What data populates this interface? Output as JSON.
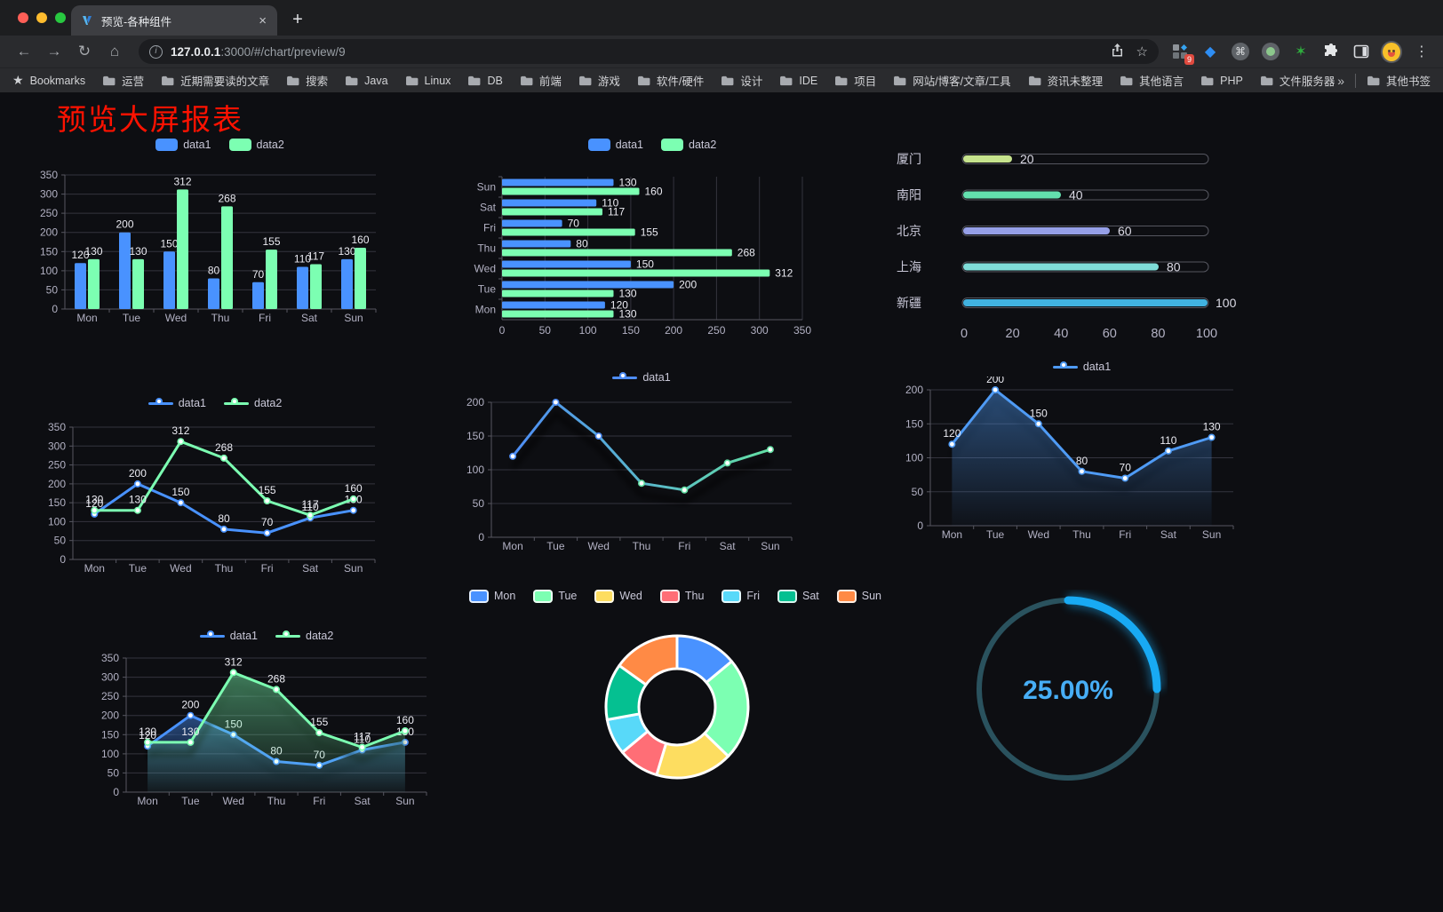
{
  "browser": {
    "tab_title": "预览-各种组件",
    "close_glyph": "×",
    "new_tab_glyph": "+",
    "url_host": "127.0.0.1",
    "url_rest": ":3000/#/chart/preview/9",
    "extension_badge": "9",
    "menu_glyph": "⋮"
  },
  "bookmarks_bar": {
    "label": "Bookmarks",
    "folders": [
      "运营",
      "近期需要读的文章",
      "搜索",
      "Java",
      "Linux",
      "DB",
      "前端",
      "游戏",
      "软件/硬件",
      "设计",
      "IDE",
      "项目",
      "网站/博客/文章/工具",
      "资讯未整理",
      "其他语言",
      "PHP",
      "文件服务器"
    ],
    "overflow_glyph": "»",
    "other_bookmarks": "其他书签"
  },
  "page": {
    "title": "预览大屏报表"
  },
  "chart_data": [
    {
      "id": "c1",
      "type": "bar",
      "legend_position": "top",
      "grid": true,
      "categories": [
        "Mon",
        "Tue",
        "Wed",
        "Thu",
        "Fri",
        "Sat",
        "Sun"
      ],
      "series": [
        {
          "name": "data1",
          "color": "#4992ff",
          "values": [
            120,
            200,
            150,
            80,
            70,
            110,
            130
          ]
        },
        {
          "name": "data2",
          "color": "#7cffb2",
          "values": [
            130,
            130,
            312,
            268,
            155,
            117,
            160
          ]
        }
      ],
      "ylim": [
        0,
        350
      ],
      "ytick": 50
    },
    {
      "id": "c2",
      "type": "hbar",
      "legend_position": "top",
      "grid": true,
      "categories_bottom_to_top": [
        "Mon",
        "Tue",
        "Wed",
        "Thu",
        "Fri",
        "Sat",
        "Sun"
      ],
      "series": [
        {
          "name": "data1",
          "color": "#4992ff",
          "values": [
            120,
            200,
            150,
            80,
            70,
            110,
            130
          ]
        },
        {
          "name": "data2",
          "color": "#7cffb2",
          "values": [
            130,
            130,
            312,
            268,
            155,
            117,
            160
          ]
        }
      ],
      "xlim": [
        0,
        350
      ],
      "xtick": 50
    },
    {
      "id": "c3",
      "type": "progress",
      "items": [
        {
          "label": "厦门",
          "value": 20,
          "color": "#c6e38d"
        },
        {
          "label": "南阳",
          "value": 40,
          "color": "#63dfae"
        },
        {
          "label": "北京",
          "value": 60,
          "color": "#96a0e8"
        },
        {
          "label": "上海",
          "value": 80,
          "color": "#7fdcd8"
        },
        {
          "label": "新疆",
          "value": 100,
          "color": "#41b2e0"
        }
      ],
      "xlim": [
        0,
        100
      ],
      "xticks": [
        0,
        20,
        40,
        60,
        80,
        100
      ]
    },
    {
      "id": "c4",
      "type": "line",
      "legend_position": "top",
      "point_labels": true,
      "grid": true,
      "categories": [
        "Mon",
        "Tue",
        "Wed",
        "Thu",
        "Fri",
        "Sat",
        "Sun"
      ],
      "series": [
        {
          "name": "data1",
          "color": "#4992ff",
          "values": [
            120,
            200,
            150,
            80,
            70,
            110,
            130
          ]
        },
        {
          "name": "data2",
          "color": "#7cffb2",
          "values": [
            130,
            130,
            312,
            268,
            155,
            117,
            160
          ]
        }
      ],
      "ylim": [
        0,
        350
      ],
      "ytick": 50
    },
    {
      "id": "c5",
      "type": "line",
      "legend_position": "top",
      "point_labels": false,
      "shadow": true,
      "grid": true,
      "categories": [
        "Mon",
        "Tue",
        "Wed",
        "Thu",
        "Fri",
        "Sat",
        "Sun"
      ],
      "series": [
        {
          "name": "data1",
          "gradient": [
            "#4e8df6",
            "#63e0a4"
          ],
          "values": [
            120,
            200,
            150,
            80,
            70,
            110,
            130
          ]
        }
      ],
      "ylim": [
        0,
        200
      ],
      "ytick": 50
    },
    {
      "id": "c6",
      "type": "line",
      "legend_position": "top",
      "point_labels": true,
      "shadow": true,
      "grid": true,
      "categories": [
        "Mon",
        "Tue",
        "Wed",
        "Thu",
        "Fri",
        "Sat",
        "Sun"
      ],
      "series": [
        {
          "name": "data1",
          "color": "#4f9bf5",
          "values": [
            120,
            200,
            150,
            80,
            70,
            110,
            130
          ],
          "area": true
        }
      ],
      "ylim": [
        0,
        200
      ],
      "ytick": 50
    },
    {
      "id": "c7",
      "type": "line",
      "legend_position": "top",
      "point_labels": true,
      "shadow": true,
      "grid": true,
      "categories": [
        "Mon",
        "Tue",
        "Wed",
        "Thu",
        "Fri",
        "Sat",
        "Sun"
      ],
      "series": [
        {
          "name": "data1",
          "color": "#4992ff",
          "values": [
            120,
            200,
            150,
            80,
            70,
            110,
            130
          ],
          "area": true
        },
        {
          "name": "data2",
          "color": "#7cffb2",
          "values": [
            130,
            130,
            312,
            268,
            155,
            117,
            160
          ],
          "area": true
        }
      ],
      "ylim": [
        0,
        350
      ],
      "ytick": 50
    },
    {
      "id": "c8",
      "type": "pie",
      "legend_position": "top",
      "inner_radius_ratio": 0.54,
      "items": [
        {
          "label": "Mon",
          "value": 120,
          "color": "#4992ff"
        },
        {
          "label": "Tue",
          "value": 200,
          "color": "#7cffb2"
        },
        {
          "label": "Wed",
          "value": 150,
          "color": "#fddd60"
        },
        {
          "label": "Thu",
          "value": 80,
          "color": "#ff6e76"
        },
        {
          "label": "Fri",
          "value": 70,
          "color": "#58d9f9"
        },
        {
          "label": "Sat",
          "value": 110,
          "color": "#05c091"
        },
        {
          "label": "Sun",
          "value": 130,
          "color": "#ff8a45"
        }
      ]
    },
    {
      "id": "c9",
      "type": "gauge",
      "value": 25,
      "label": "25.00%",
      "progress_color": "#18aaf4",
      "track_color": "#2a525e",
      "text_color": "#47aef6"
    }
  ]
}
